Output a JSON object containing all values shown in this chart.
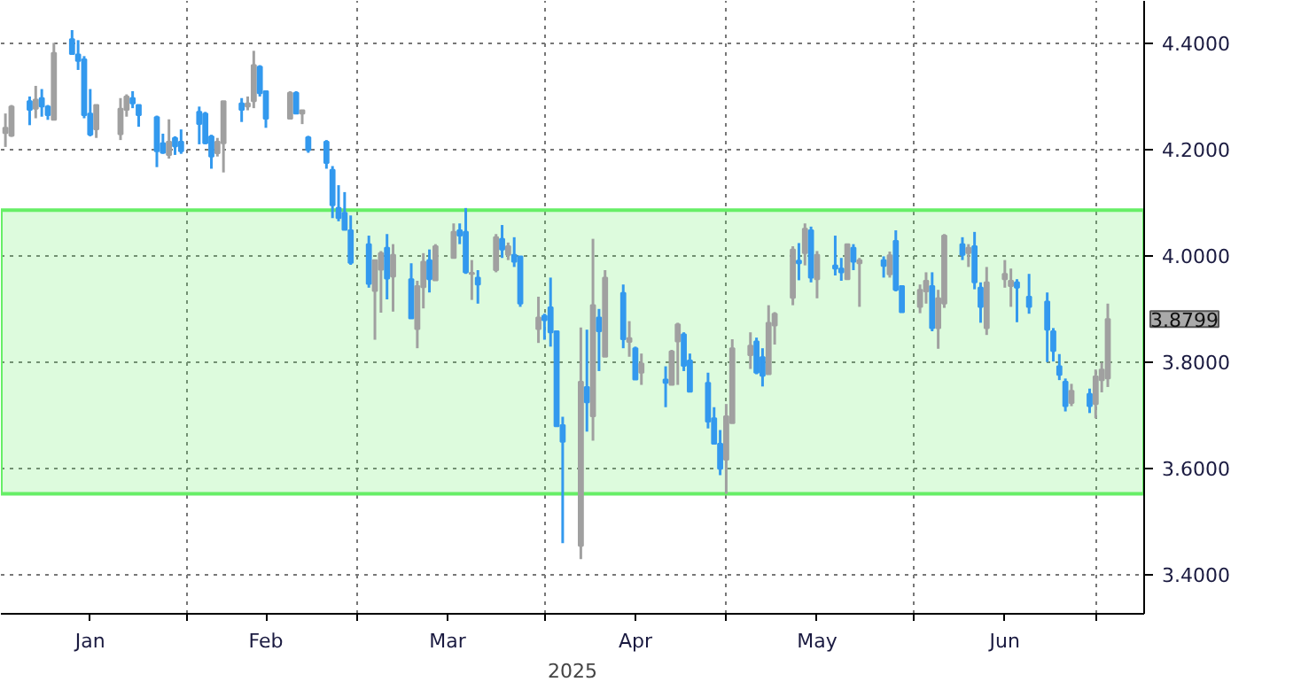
{
  "chart_data": {
    "type": "candlestick",
    "xlabel": "2025",
    "x": [
      "2025-01-02",
      "2025-01-03",
      "2025-01-06",
      "2025-01-07",
      "2025-01-08",
      "2025-01-09",
      "2025-01-10",
      "2025-01-13",
      "2025-01-14",
      "2025-01-15",
      "2025-01-16",
      "2025-01-17",
      "2025-01-21",
      "2025-01-22",
      "2025-01-23",
      "2025-01-24",
      "2025-01-27",
      "2025-01-28",
      "2025-01-29",
      "2025-01-30",
      "2025-01-31",
      "2025-02-03",
      "2025-02-04",
      "2025-02-05",
      "2025-02-06",
      "2025-02-07",
      "2025-02-10",
      "2025-02-11",
      "2025-02-12",
      "2025-02-13",
      "2025-02-14",
      "2025-02-18",
      "2025-02-19",
      "2025-02-20",
      "2025-02-21",
      "2025-02-24",
      "2025-02-25",
      "2025-02-26",
      "2025-02-27",
      "2025-02-28",
      "2025-03-03",
      "2025-03-04",
      "2025-03-05",
      "2025-03-06",
      "2025-03-07",
      "2025-03-10",
      "2025-03-11",
      "2025-03-12",
      "2025-03-13",
      "2025-03-14",
      "2025-03-17",
      "2025-03-18",
      "2025-03-19",
      "2025-03-20",
      "2025-03-21",
      "2025-03-24",
      "2025-03-25",
      "2025-03-26",
      "2025-03-27",
      "2025-03-28",
      "2025-03-31",
      "2025-04-01",
      "2025-04-02",
      "2025-04-03",
      "2025-04-04",
      "2025-04-07",
      "2025-04-08",
      "2025-04-09",
      "2025-04-10",
      "2025-04-11",
      "2025-04-14",
      "2025-04-15",
      "2025-04-16",
      "2025-04-17",
      "2025-04-21",
      "2025-04-22",
      "2025-04-23",
      "2025-04-24",
      "2025-04-25",
      "2025-04-28",
      "2025-04-29",
      "2025-04-30",
      "2025-05-01",
      "2025-05-02",
      "2025-05-05",
      "2025-05-06",
      "2025-05-07",
      "2025-05-08",
      "2025-05-09",
      "2025-05-12",
      "2025-05-13",
      "2025-05-14",
      "2025-05-15",
      "2025-05-16",
      "2025-05-19",
      "2025-05-20",
      "2025-05-21",
      "2025-05-22",
      "2025-05-23",
      "2025-05-27",
      "2025-05-28",
      "2025-05-29",
      "2025-05-30",
      "2025-06-02",
      "2025-06-03",
      "2025-06-04",
      "2025-06-05",
      "2025-06-06",
      "2025-06-09",
      "2025-06-10",
      "2025-06-11",
      "2025-06-12",
      "2025-06-13",
      "2025-06-16",
      "2025-06-17",
      "2025-06-18",
      "2025-06-20",
      "2025-06-23",
      "2025-06-24",
      "2025-06-25",
      "2025-06-26",
      "2025-06-27",
      "2025-06-30",
      "2025-07-01",
      "2025-07-02",
      "2025-07-03"
    ],
    "ohlc": [
      [
        4.23,
        4.267,
        4.204,
        4.24
      ],
      [
        4.225,
        4.283,
        4.223,
        4.28
      ],
      [
        4.29,
        4.299,
        4.245,
        4.274
      ],
      [
        4.276,
        4.319,
        4.258,
        4.293
      ],
      [
        4.296,
        4.313,
        4.261,
        4.28
      ],
      [
        4.28,
        4.283,
        4.255,
        4.264
      ],
      [
        4.255,
        4.4,
        4.255,
        4.381
      ],
      [
        4.407,
        4.424,
        4.379,
        4.379
      ],
      [
        4.378,
        4.405,
        4.349,
        4.366
      ],
      [
        4.369,
        4.375,
        4.258,
        4.264
      ],
      [
        4.267,
        4.313,
        4.224,
        4.227
      ],
      [
        4.237,
        4.283,
        4.221,
        4.283
      ],
      [
        4.228,
        4.296,
        4.217,
        4.276
      ],
      [
        4.274,
        4.303,
        4.261,
        4.299
      ],
      [
        4.296,
        4.309,
        4.277,
        4.286
      ],
      [
        4.283,
        4.283,
        4.242,
        4.264
      ],
      [
        4.26,
        4.263,
        4.166,
        4.196
      ],
      [
        4.211,
        4.229,
        4.191,
        4.193
      ],
      [
        4.189,
        4.256,
        4.182,
        4.214
      ],
      [
        4.221,
        4.224,
        4.189,
        4.205
      ],
      [
        4.214,
        4.237,
        4.191,
        4.196
      ],
      [
        4.27,
        4.28,
        4.209,
        4.247
      ],
      [
        4.267,
        4.27,
        4.209,
        4.211
      ],
      [
        4.224,
        4.227,
        4.163,
        4.186
      ],
      [
        4.192,
        4.221,
        4.186,
        4.214
      ],
      [
        4.211,
        4.29,
        4.156,
        4.29
      ],
      [
        4.286,
        4.296,
        4.251,
        4.274
      ],
      [
        4.28,
        4.299,
        4.273,
        4.286
      ],
      [
        4.29,
        4.385,
        4.277,
        4.358
      ],
      [
        4.355,
        4.358,
        4.299,
        4.305
      ],
      [
        4.309,
        4.309,
        4.24,
        4.257
      ],
      [
        4.257,
        4.309,
        4.257,
        4.306
      ],
      [
        4.306,
        4.309,
        4.267,
        4.267
      ],
      [
        4.267,
        4.273,
        4.247,
        4.273
      ],
      [
        4.222,
        4.225,
        4.193,
        4.198
      ],
      [
        4.214,
        4.217,
        4.163,
        4.174
      ],
      [
        4.161,
        4.168,
        4.07,
        4.094
      ],
      [
        4.089,
        4.132,
        4.064,
        4.07
      ],
      [
        4.08,
        4.119,
        4.048,
        4.048
      ],
      [
        4.047,
        4.075,
        3.982,
        3.986
      ],
      [
        4.021,
        4.037,
        3.939,
        3.946
      ],
      [
        3.933,
        3.991,
        3.841,
        3.991
      ],
      [
        3.973,
        4.008,
        3.892,
        4.004
      ],
      [
        4.014,
        4.04,
        3.917,
        3.956
      ],
      [
        3.96,
        4.021,
        3.894,
        4.001
      ],
      [
        3.955,
        3.985,
        3.881,
        3.881
      ],
      [
        3.861,
        3.952,
        3.825,
        3.942
      ],
      [
        3.94,
        4.004,
        3.9,
        3.988
      ],
      [
        3.991,
        4.011,
        3.93,
        3.955
      ],
      [
        3.953,
        4.021,
        3.953,
        4.017
      ],
      [
        3.995,
        4.06,
        3.995,
        4.044
      ],
      [
        4.047,
        4.06,
        4.021,
        4.037
      ],
      [
        4.044,
        4.089,
        3.965,
        3.968
      ],
      [
        3.965,
        3.991,
        3.916,
        3.967
      ],
      [
        3.958,
        3.972,
        3.909,
        3.945
      ],
      [
        3.972,
        4.04,
        3.968,
        4.034
      ],
      [
        4.031,
        4.057,
        3.995,
        4.011
      ],
      [
        4.001,
        4.024,
        3.991,
        4.017
      ],
      [
        4.001,
        4.034,
        3.978,
        3.988
      ],
      [
        3.998,
        3.998,
        3.903,
        3.909
      ],
      [
        3.861,
        3.922,
        3.835,
        3.883
      ],
      [
        3.886,
        3.89,
        3.841,
        3.878
      ],
      [
        3.902,
        3.958,
        3.828,
        3.855
      ],
      [
        3.857,
        3.857,
        3.678,
        3.678
      ],
      [
        3.68,
        3.696,
        3.458,
        3.649
      ],
      [
        3.453,
        3.864,
        3.428,
        3.762
      ],
      [
        3.752,
        3.86,
        3.668,
        3.723
      ],
      [
        3.697,
        4.031,
        3.651,
        3.906
      ],
      [
        3.883,
        3.899,
        3.782,
        3.857
      ],
      [
        3.809,
        3.972,
        3.809,
        3.958
      ],
      [
        3.929,
        3.945,
        3.825,
        3.842
      ],
      [
        3.837,
        3.876,
        3.809,
        3.844
      ],
      [
        3.825,
        3.828,
        3.766,
        3.766
      ],
      [
        3.779,
        3.815,
        3.756,
        3.796
      ],
      [
        3.766,
        3.791,
        3.714,
        3.76
      ],
      [
        3.756,
        3.822,
        3.756,
        3.819
      ],
      [
        3.838,
        3.873,
        3.756,
        3.87
      ],
      [
        3.851,
        3.855,
        3.782,
        3.792
      ],
      [
        3.802,
        3.815,
        3.743,
        3.743
      ],
      [
        3.76,
        3.779,
        3.674,
        3.687
      ],
      [
        3.693,
        3.714,
        3.645,
        3.645
      ],
      [
        3.645,
        3.671,
        3.586,
        3.598
      ],
      [
        3.615,
        3.72,
        3.551,
        3.697
      ],
      [
        3.684,
        3.842,
        3.684,
        3.825
      ],
      [
        3.812,
        3.855,
        3.786,
        3.83
      ],
      [
        3.838,
        3.845,
        3.776,
        3.779
      ],
      [
        3.808,
        3.825,
        3.753,
        3.773
      ],
      [
        3.776,
        3.906,
        3.776,
        3.873
      ],
      [
        3.868,
        3.893,
        3.832,
        3.89
      ],
      [
        3.92,
        4.017,
        3.906,
        4.011
      ],
      [
        3.99,
        4.023,
        3.953,
        3.985
      ],
      [
        4.004,
        4.06,
        3.981,
        4.05
      ],
      [
        4.047,
        4.054,
        3.949,
        3.958
      ],
      [
        3.955,
        4.008,
        3.919,
        4.001
      ],
      [
        3.981,
        4.037,
        3.962,
        3.975
      ],
      [
        3.975,
        3.995,
        3.952,
        3.968
      ],
      [
        3.955,
        4.021,
        3.955,
        4.021
      ],
      [
        4.014,
        4.021,
        3.972,
        3.988
      ],
      [
        3.985,
        3.995,
        3.903,
        3.991
      ],
      [
        3.991,
        3.998,
        3.958,
        3.98
      ],
      [
        3.964,
        4.007,
        3.958,
        4.0
      ],
      [
        4.027,
        4.047,
        3.932,
        3.935
      ],
      [
        3.942,
        3.942,
        3.893,
        3.893
      ],
      [
        3.903,
        3.945,
        3.891,
        3.935
      ],
      [
        3.932,
        3.968,
        3.909,
        3.952
      ],
      [
        3.942,
        3.968,
        3.857,
        3.863
      ],
      [
        3.863,
        3.935,
        3.824,
        3.919
      ],
      [
        3.909,
        4.04,
        3.901,
        4.037
      ],
      [
        4.021,
        4.034,
        3.991,
        4.001
      ],
      [
        4.004,
        4.021,
        3.978,
        4.014
      ],
      [
        4.017,
        4.044,
        3.936,
        3.949
      ],
      [
        3.939,
        3.949,
        3.873,
        3.903
      ],
      [
        3.863,
        3.978,
        3.85,
        3.949
      ],
      [
        3.955,
        3.991,
        3.939,
        3.965
      ],
      [
        3.942,
        3.975,
        3.903,
        3.952
      ],
      [
        3.949,
        3.955,
        3.874,
        3.939
      ],
      [
        3.922,
        3.965,
        3.89,
        3.903
      ],
      [
        3.913,
        3.93,
        3.799,
        3.86
      ],
      [
        3.857,
        3.863,
        3.8,
        3.82
      ],
      [
        3.791,
        3.814,
        3.765,
        3.775
      ],
      [
        3.762,
        3.768,
        3.706,
        3.716
      ],
      [
        3.722,
        3.758,
        3.716,
        3.745
      ],
      [
        3.739,
        3.749,
        3.703,
        3.716
      ],
      [
        3.72,
        3.785,
        3.693,
        3.772
      ],
      [
        3.765,
        3.798,
        3.742,
        3.785
      ],
      [
        3.768,
        3.909,
        3.752,
        3.8799
      ]
    ],
    "colors": [
      "#a0a0a0",
      "#a0a0a0",
      "#3399ee",
      "#a0a0a0",
      "#3399ee",
      "#3399ee",
      "#a0a0a0",
      "#3399ee",
      "#3399ee",
      "#3399ee",
      "#3399ee",
      "#a0a0a0",
      "#a0a0a0",
      "#a0a0a0",
      "#3399ee",
      "#3399ee",
      "#3399ee",
      "#3399ee",
      "#a0a0a0",
      "#3399ee",
      "#3399ee",
      "#3399ee",
      "#3399ee",
      "#3399ee",
      "#a0a0a0",
      "#a0a0a0",
      "#3399ee",
      "#a0a0a0",
      "#a0a0a0",
      "#3399ee",
      "#3399ee",
      "#a0a0a0",
      "#3399ee",
      "#a0a0a0",
      "#3399ee",
      "#3399ee",
      "#3399ee",
      "#3399ee",
      "#3399ee",
      "#3399ee",
      "#3399ee",
      "#a0a0a0",
      "#a0a0a0",
      "#3399ee",
      "#a0a0a0",
      "#3399ee",
      "#a0a0a0",
      "#a0a0a0",
      "#3399ee",
      "#a0a0a0",
      "#a0a0a0",
      "#3399ee",
      "#3399ee",
      "#a0a0a0",
      "#3399ee",
      "#a0a0a0",
      "#3399ee",
      "#a0a0a0",
      "#3399ee",
      "#3399ee",
      "#a0a0a0",
      "#3399ee",
      "#3399ee",
      "#3399ee",
      "#3399ee",
      "#a0a0a0",
      "#3399ee",
      "#a0a0a0",
      "#3399ee",
      "#a0a0a0",
      "#3399ee",
      "#a0a0a0",
      "#3399ee",
      "#a0a0a0",
      "#3399ee",
      "#a0a0a0",
      "#a0a0a0",
      "#3399ee",
      "#3399ee",
      "#3399ee",
      "#3399ee",
      "#3399ee",
      "#a0a0a0",
      "#a0a0a0",
      "#a0a0a0",
      "#3399ee",
      "#3399ee",
      "#a0a0a0",
      "#a0a0a0",
      "#a0a0a0",
      "#3399ee",
      "#a0a0a0",
      "#3399ee",
      "#a0a0a0",
      "#3399ee",
      "#3399ee",
      "#a0a0a0",
      "#3399ee",
      "#a0a0a0",
      "#3399ee",
      "#a0a0a0",
      "#3399ee",
      "#3399ee",
      "#a0a0a0",
      "#a0a0a0",
      "#3399ee",
      "#a0a0a0",
      "#a0a0a0",
      "#3399ee",
      "#a0a0a0",
      "#3399ee",
      "#3399ee",
      "#a0a0a0",
      "#a0a0a0",
      "#a0a0a0",
      "#3399ee",
      "#3399ee",
      "#3399ee",
      "#3399ee",
      "#3399ee",
      "#3399ee",
      "#a0a0a0",
      "#3399ee",
      "#a0a0a0",
      "#a0a0a0",
      "#a0a0a0"
    ],
    "xlim": [
      "2025-01-01T06:00",
      "2025-07-09"
    ],
    "xticks": [
      {
        "value": "2025-01-16",
        "label": "Jan"
      },
      {
        "value": "2025-02-01",
        "label": null
      },
      {
        "value": "2025-02-14",
        "label": "Feb"
      },
      {
        "value": "2025-03-01",
        "label": null
      },
      {
        "value": "2025-03-16",
        "label": "Mar"
      },
      {
        "value": "2025-04-01",
        "label": null
      },
      {
        "value": "2025-04-16",
        "label": "Apr"
      },
      {
        "value": "2025-05-01",
        "label": null
      },
      {
        "value": "2025-05-16",
        "label": "May"
      },
      {
        "value": "2025-06-01",
        "label": null
      },
      {
        "value": "2025-06-16",
        "label": "Jun"
      },
      {
        "value": "2025-07-01",
        "label": null
      }
    ],
    "ylim": [
      3.325,
      4.479
    ],
    "yticks": [
      {
        "value": 3.4,
        "label": "3.4000"
      },
      {
        "value": 3.6,
        "label": "3.6000"
      },
      {
        "value": 3.8,
        "label": "3.8000"
      },
      {
        "value": 4.0,
        "label": "4.0000"
      },
      {
        "value": 4.2,
        "label": "4.2000"
      },
      {
        "value": 4.4,
        "label": "4.4000"
      }
    ],
    "bands": [
      {
        "axis": "y",
        "from": 3.551,
        "to": 4.085,
        "color": "#66ee66"
      }
    ],
    "annotations": [
      {
        "text": "3.8799",
        "x": "2025-07-03",
        "y": 3.8799
      }
    ],
    "grid": true
  }
}
